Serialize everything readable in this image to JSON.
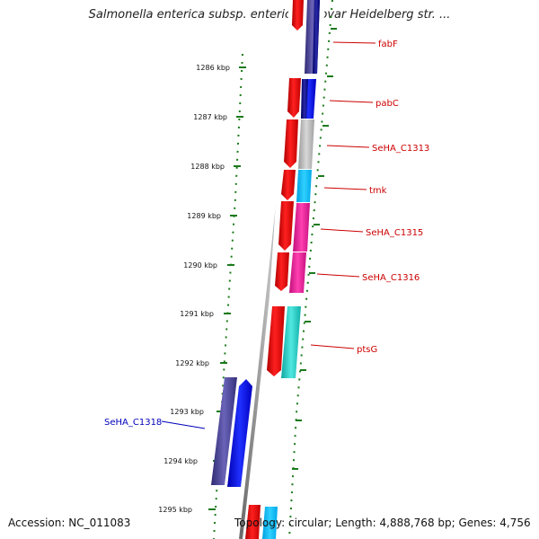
{
  "title": "Salmonella enterica subsp. enterica serovar Heidelberg str. ...",
  "footer": {
    "accession": "Accession: NC_011083",
    "topology": "Topology: circular; Length: 4,888,768 bp; Genes: 4,756"
  },
  "colors": {
    "kbp_tick": "#1a7a1a",
    "label_red": "#cc0000",
    "label_blue": "#0000bb",
    "backbone": "#888888"
  },
  "kbp_ticks": [
    "1286 kbp",
    "1287 kbp",
    "1288 kbp",
    "1289 kbp",
    "1290 kbp",
    "1291 kbp",
    "1292 kbp",
    "1293 kbp",
    "1294 kbp",
    "1295 kbp"
  ],
  "gene_labels": [
    {
      "name": "fabF",
      "strand": "forward"
    },
    {
      "name": "pabC",
      "strand": "forward"
    },
    {
      "name": "SeHA_C1313",
      "strand": "forward"
    },
    {
      "name": "tmk",
      "strand": "forward"
    },
    {
      "name": "SeHA_C1315",
      "strand": "forward"
    },
    {
      "name": "SeHA_C1316",
      "strand": "forward"
    },
    {
      "name": "ptsG",
      "strand": "forward"
    },
    {
      "name": "SeHA_C1318",
      "strand": "reverse"
    }
  ]
}
